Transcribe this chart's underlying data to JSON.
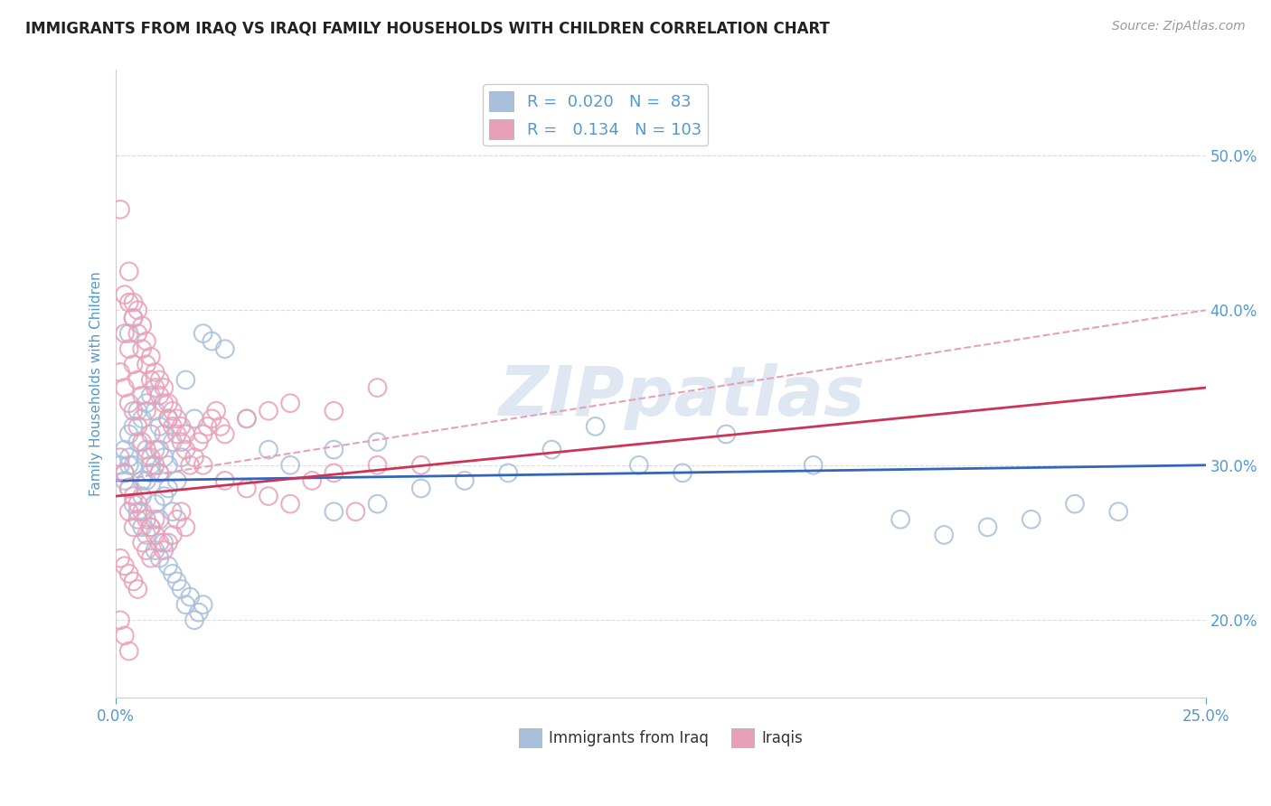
{
  "title": "IMMIGRANTS FROM IRAQ VS IRAQI FAMILY HOUSEHOLDS WITH CHILDREN CORRELATION CHART",
  "source": "Source: ZipAtlas.com",
  "ylabel": "Family Households with Children",
  "xlim": [
    0.0,
    0.25
  ],
  "ylim": [
    0.15,
    0.555
  ],
  "x_ticks": [
    0.0,
    0.25
  ],
  "x_tick_labels": [
    "0.0%",
    "25.0%"
  ],
  "y_ticks": [
    0.2,
    0.3,
    0.4,
    0.5
  ],
  "y_tick_labels": [
    "20.0%",
    "30.0%",
    "40.0%",
    "50.0%"
  ],
  "legend1_r": "0.020",
  "legend1_n": "83",
  "legend2_r": "0.134",
  "legend2_n": "103",
  "blue_color": "#a8bfdc",
  "pink_color": "#e8a0b8",
  "blue_line_color": "#3366bb",
  "pink_line_color": "#cc3355",
  "title_color": "#222222",
  "tick_color": "#5599cc",
  "legend_text_color": "#5599cc",
  "watermark_color": "#c8d8ea",
  "background_color": "#ffffff",
  "grid_color": "#dddddd",
  "figsize": [
    14.06,
    8.92
  ],
  "dpi": 100,
  "blue_scatter": [
    [
      0.002,
      0.295
    ],
    [
      0.003,
      0.305
    ],
    [
      0.004,
      0.3
    ],
    [
      0.005,
      0.315
    ],
    [
      0.006,
      0.29
    ],
    [
      0.007,
      0.305
    ],
    [
      0.008,
      0.3
    ],
    [
      0.009,
      0.31
    ],
    [
      0.01,
      0.295
    ],
    [
      0.011,
      0.305
    ],
    [
      0.012,
      0.3
    ],
    [
      0.013,
      0.315
    ],
    [
      0.014,
      0.29
    ],
    [
      0.015,
      0.305
    ],
    [
      0.003,
      0.285
    ],
    [
      0.004,
      0.275
    ],
    [
      0.005,
      0.27
    ],
    [
      0.006,
      0.28
    ],
    [
      0.007,
      0.29
    ],
    [
      0.008,
      0.295
    ],
    [
      0.009,
      0.275
    ],
    [
      0.01,
      0.265
    ],
    [
      0.011,
      0.28
    ],
    [
      0.012,
      0.285
    ],
    [
      0.013,
      0.27
    ],
    [
      0.002,
      0.31
    ],
    [
      0.003,
      0.32
    ],
    [
      0.004,
      0.325
    ],
    [
      0.005,
      0.335
    ],
    [
      0.006,
      0.33
    ],
    [
      0.007,
      0.34
    ],
    [
      0.008,
      0.345
    ],
    [
      0.009,
      0.335
    ],
    [
      0.01,
      0.325
    ],
    [
      0.011,
      0.32
    ],
    [
      0.012,
      0.33
    ],
    [
      0.001,
      0.3
    ],
    [
      0.002,
      0.29
    ],
    [
      0.003,
      0.3
    ],
    [
      0.016,
      0.355
    ],
    [
      0.018,
      0.33
    ],
    [
      0.02,
      0.385
    ],
    [
      0.022,
      0.38
    ],
    [
      0.025,
      0.375
    ],
    [
      0.03,
      0.33
    ],
    [
      0.035,
      0.31
    ],
    [
      0.04,
      0.3
    ],
    [
      0.05,
      0.31
    ],
    [
      0.06,
      0.315
    ],
    [
      0.07,
      0.285
    ],
    [
      0.08,
      0.29
    ],
    [
      0.09,
      0.295
    ],
    [
      0.1,
      0.31
    ],
    [
      0.11,
      0.325
    ],
    [
      0.12,
      0.3
    ],
    [
      0.13,
      0.295
    ],
    [
      0.14,
      0.32
    ],
    [
      0.16,
      0.3
    ],
    [
      0.18,
      0.265
    ],
    [
      0.19,
      0.255
    ],
    [
      0.2,
      0.26
    ],
    [
      0.21,
      0.265
    ],
    [
      0.22,
      0.275
    ],
    [
      0.23,
      0.27
    ],
    [
      0.006,
      0.26
    ],
    [
      0.007,
      0.255
    ],
    [
      0.008,
      0.26
    ],
    [
      0.009,
      0.245
    ],
    [
      0.01,
      0.24
    ],
    [
      0.011,
      0.25
    ],
    [
      0.012,
      0.235
    ],
    [
      0.013,
      0.23
    ],
    [
      0.014,
      0.225
    ],
    [
      0.015,
      0.22
    ],
    [
      0.016,
      0.21
    ],
    [
      0.017,
      0.215
    ],
    [
      0.003,
      0.385
    ],
    [
      0.004,
      0.395
    ],
    [
      0.018,
      0.2
    ],
    [
      0.019,
      0.205
    ],
    [
      0.02,
      0.21
    ],
    [
      0.05,
      0.27
    ],
    [
      0.06,
      0.275
    ]
  ],
  "pink_scatter": [
    [
      0.001,
      0.465
    ],
    [
      0.002,
      0.41
    ],
    [
      0.003,
      0.405
    ],
    [
      0.003,
      0.425
    ],
    [
      0.004,
      0.395
    ],
    [
      0.004,
      0.405
    ],
    [
      0.005,
      0.385
    ],
    [
      0.005,
      0.4
    ],
    [
      0.006,
      0.375
    ],
    [
      0.006,
      0.39
    ],
    [
      0.007,
      0.365
    ],
    [
      0.007,
      0.38
    ],
    [
      0.008,
      0.355
    ],
    [
      0.008,
      0.37
    ],
    [
      0.009,
      0.35
    ],
    [
      0.009,
      0.36
    ],
    [
      0.01,
      0.345
    ],
    [
      0.01,
      0.355
    ],
    [
      0.011,
      0.34
    ],
    [
      0.011,
      0.35
    ],
    [
      0.012,
      0.33
    ],
    [
      0.012,
      0.34
    ],
    [
      0.013,
      0.325
    ],
    [
      0.013,
      0.335
    ],
    [
      0.014,
      0.32
    ],
    [
      0.014,
      0.33
    ],
    [
      0.015,
      0.315
    ],
    [
      0.015,
      0.325
    ],
    [
      0.016,
      0.31
    ],
    [
      0.016,
      0.32
    ],
    [
      0.001,
      0.36
    ],
    [
      0.002,
      0.35
    ],
    [
      0.003,
      0.34
    ],
    [
      0.004,
      0.335
    ],
    [
      0.005,
      0.325
    ],
    [
      0.006,
      0.315
    ],
    [
      0.007,
      0.31
    ],
    [
      0.008,
      0.305
    ],
    [
      0.009,
      0.3
    ],
    [
      0.01,
      0.295
    ],
    [
      0.002,
      0.295
    ],
    [
      0.003,
      0.285
    ],
    [
      0.004,
      0.28
    ],
    [
      0.005,
      0.275
    ],
    [
      0.006,
      0.27
    ],
    [
      0.007,
      0.265
    ],
    [
      0.008,
      0.26
    ],
    [
      0.009,
      0.255
    ],
    [
      0.01,
      0.25
    ],
    [
      0.011,
      0.245
    ],
    [
      0.012,
      0.25
    ],
    [
      0.001,
      0.24
    ],
    [
      0.002,
      0.235
    ],
    [
      0.003,
      0.23
    ],
    [
      0.004,
      0.225
    ],
    [
      0.005,
      0.22
    ],
    [
      0.001,
      0.2
    ],
    [
      0.002,
      0.19
    ],
    [
      0.017,
      0.3
    ],
    [
      0.018,
      0.305
    ],
    [
      0.019,
      0.315
    ],
    [
      0.02,
      0.32
    ],
    [
      0.021,
      0.325
    ],
    [
      0.022,
      0.33
    ],
    [
      0.023,
      0.335
    ],
    [
      0.024,
      0.325
    ],
    [
      0.025,
      0.32
    ],
    [
      0.03,
      0.33
    ],
    [
      0.035,
      0.335
    ],
    [
      0.04,
      0.34
    ],
    [
      0.05,
      0.335
    ],
    [
      0.06,
      0.35
    ],
    [
      0.003,
      0.27
    ],
    [
      0.004,
      0.26
    ],
    [
      0.005,
      0.265
    ],
    [
      0.006,
      0.25
    ],
    [
      0.007,
      0.245
    ],
    [
      0.008,
      0.24
    ],
    [
      0.009,
      0.265
    ],
    [
      0.003,
      0.18
    ],
    [
      0.04,
      0.275
    ],
    [
      0.055,
      0.27
    ],
    [
      0.07,
      0.3
    ],
    [
      0.015,
      0.27
    ],
    [
      0.016,
      0.26
    ],
    [
      0.013,
      0.255
    ],
    [
      0.014,
      0.265
    ],
    [
      0.01,
      0.31
    ],
    [
      0.02,
      0.3
    ],
    [
      0.025,
      0.29
    ],
    [
      0.03,
      0.285
    ],
    [
      0.035,
      0.28
    ],
    [
      0.045,
      0.29
    ],
    [
      0.05,
      0.295
    ],
    [
      0.06,
      0.3
    ],
    [
      0.008,
      0.32
    ],
    [
      0.007,
      0.335
    ],
    [
      0.006,
      0.345
    ],
    [
      0.005,
      0.355
    ],
    [
      0.004,
      0.365
    ],
    [
      0.003,
      0.375
    ],
    [
      0.002,
      0.385
    ],
    [
      0.001,
      0.305
    ]
  ],
  "blue_line_intercept": 0.29,
  "blue_line_slope": 0.04,
  "pink_line_intercept": 0.28,
  "pink_line_slope": 0.28,
  "pink_dash_intercept": 0.29,
  "pink_dash_slope": 0.44
}
